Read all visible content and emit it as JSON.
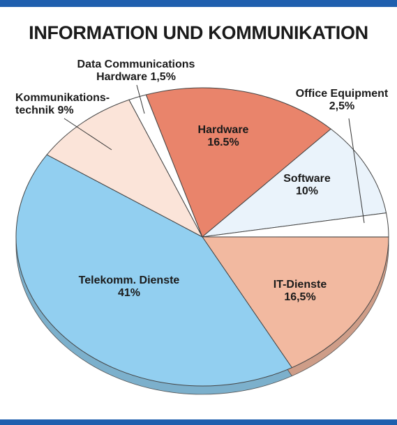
{
  "chart_data": {
    "type": "pie",
    "title": "INFORMATION UND KOMMUNIKATION",
    "categories": [
      "Hardware",
      "Software",
      "Office Equipment",
      "IT-Dienste",
      "Telekomm. Dienste",
      "Kommunikations-technik",
      "Data Communications Hardware"
    ],
    "values": [
      16.5,
      10,
      2.5,
      16.5,
      41,
      9,
      1.5
    ],
    "value_labels": [
      "16.5%",
      "10%",
      "2,5%",
      "16,5%",
      "41%",
      "9%",
      "1,5%"
    ],
    "colors": [
      "#e9846b",
      "#eaf3fb",
      "#ffffff",
      "#f2b9a0",
      "#92cff0",
      "#fbe4d9",
      "#ffffff"
    ]
  }
}
